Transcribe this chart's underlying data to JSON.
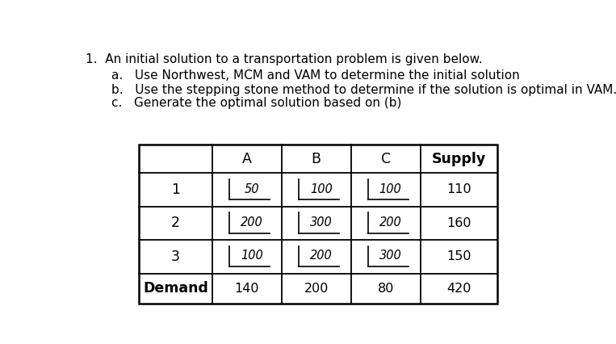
{
  "title_num": "1.",
  "title_main": "  An initial solution to a transportation problem is given below.",
  "sub_a": "a.   Use Northwest, MCM and VAM to determine the initial solution",
  "sub_b": "b.   Use the stepping stone method to determine if the solution is optimal in VAM.",
  "sub_c": "c.   Generate the optimal solution based on (b)",
  "col_headers": [
    "A",
    "B",
    "C",
    "Supply"
  ],
  "row_headers": [
    "1",
    "2",
    "3",
    "Demand"
  ],
  "costs": [
    [
      "50",
      "100",
      "100"
    ],
    [
      "200",
      "300",
      "200"
    ],
    [
      "100",
      "200",
      "300"
    ]
  ],
  "supply": [
    "110",
    "160",
    "150"
  ],
  "demand": [
    "140",
    "200",
    "80",
    "420"
  ],
  "bg_color": "#ffffff",
  "text_fontsize": 11.0,
  "header_fontsize": 12.5,
  "cell_fontsize": 11.5
}
